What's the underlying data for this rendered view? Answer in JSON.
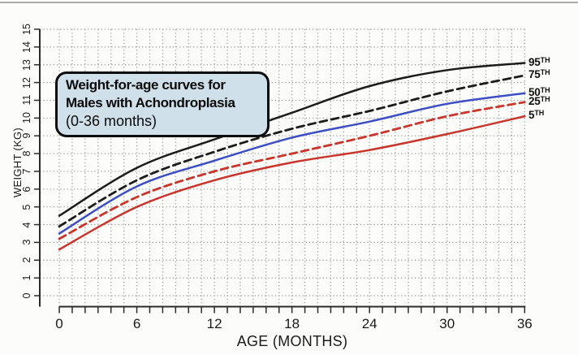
{
  "annotation_box": {
    "line1": "Weight-for-age curves for",
    "line2": "Males with Achondroplasia",
    "line3": "(0-36 months)",
    "fill_color": "#cfe0ea",
    "border_color": "#0d0d0d"
  },
  "chart_data": {
    "type": "line",
    "title": "Weight-for-age curves for Males with Achondroplasia (0-36 months)",
    "xlabel": "AGE (MONTHS)",
    "ylabel": "WEIGHT (KG)",
    "xlim": [
      0,
      36
    ],
    "ylim": [
      0,
      15
    ],
    "x_major_tick_labels": [
      0,
      6,
      12,
      18,
      24,
      30,
      36
    ],
    "x_minor_tick_step_months": 1,
    "y_tick_labels": [
      0,
      1,
      2,
      3,
      4,
      5,
      6,
      7,
      8,
      9,
      10,
      11,
      12,
      13,
      14,
      15
    ],
    "grid": "dotted gray, vertical line every 1 month, horizontal line every 1 kg",
    "legend_position": "labels at right end of each curve",
    "x": [
      0,
      6,
      12,
      18,
      24,
      30,
      36
    ],
    "series": [
      {
        "name": "95TH",
        "label_base": "95",
        "label_sup": "TH",
        "color": "#1c1c1c",
        "style": "solid",
        "values": [
          4.5,
          7.2,
          8.8,
          10.3,
          11.8,
          12.7,
          13.1
        ]
      },
      {
        "name": "75TH",
        "label_base": "75",
        "label_sup": "TH",
        "color": "#1c1c1c",
        "style": "dashed",
        "values": [
          3.9,
          6.5,
          8.1,
          9.4,
          10.4,
          11.5,
          12.4
        ]
      },
      {
        "name": "50TH",
        "label_base": "50",
        "label_sup": "TH",
        "color": "#3b4ec4",
        "style": "solid",
        "values": [
          3.5,
          6.15,
          7.6,
          8.9,
          9.8,
          10.8,
          11.4
        ]
      },
      {
        "name": "25TH",
        "label_base": "25",
        "label_sup": "TH",
        "color": "#c9352b",
        "style": "dashed",
        "values": [
          3.2,
          5.55,
          7.0,
          8.0,
          9.0,
          10.1,
          10.9
        ]
      },
      {
        "name": "5TH",
        "label_base": "5",
        "label_sup": "TH",
        "color": "#c9352b",
        "style": "solid",
        "values": [
          2.6,
          5.0,
          6.5,
          7.5,
          8.2,
          9.1,
          10.1
        ]
      }
    ],
    "colors": {
      "black_curve": "#1c1c1c",
      "blue_curve": "#3b4ec4",
      "red_curve": "#c9352b",
      "grid": "#9b9b9b"
    }
  }
}
